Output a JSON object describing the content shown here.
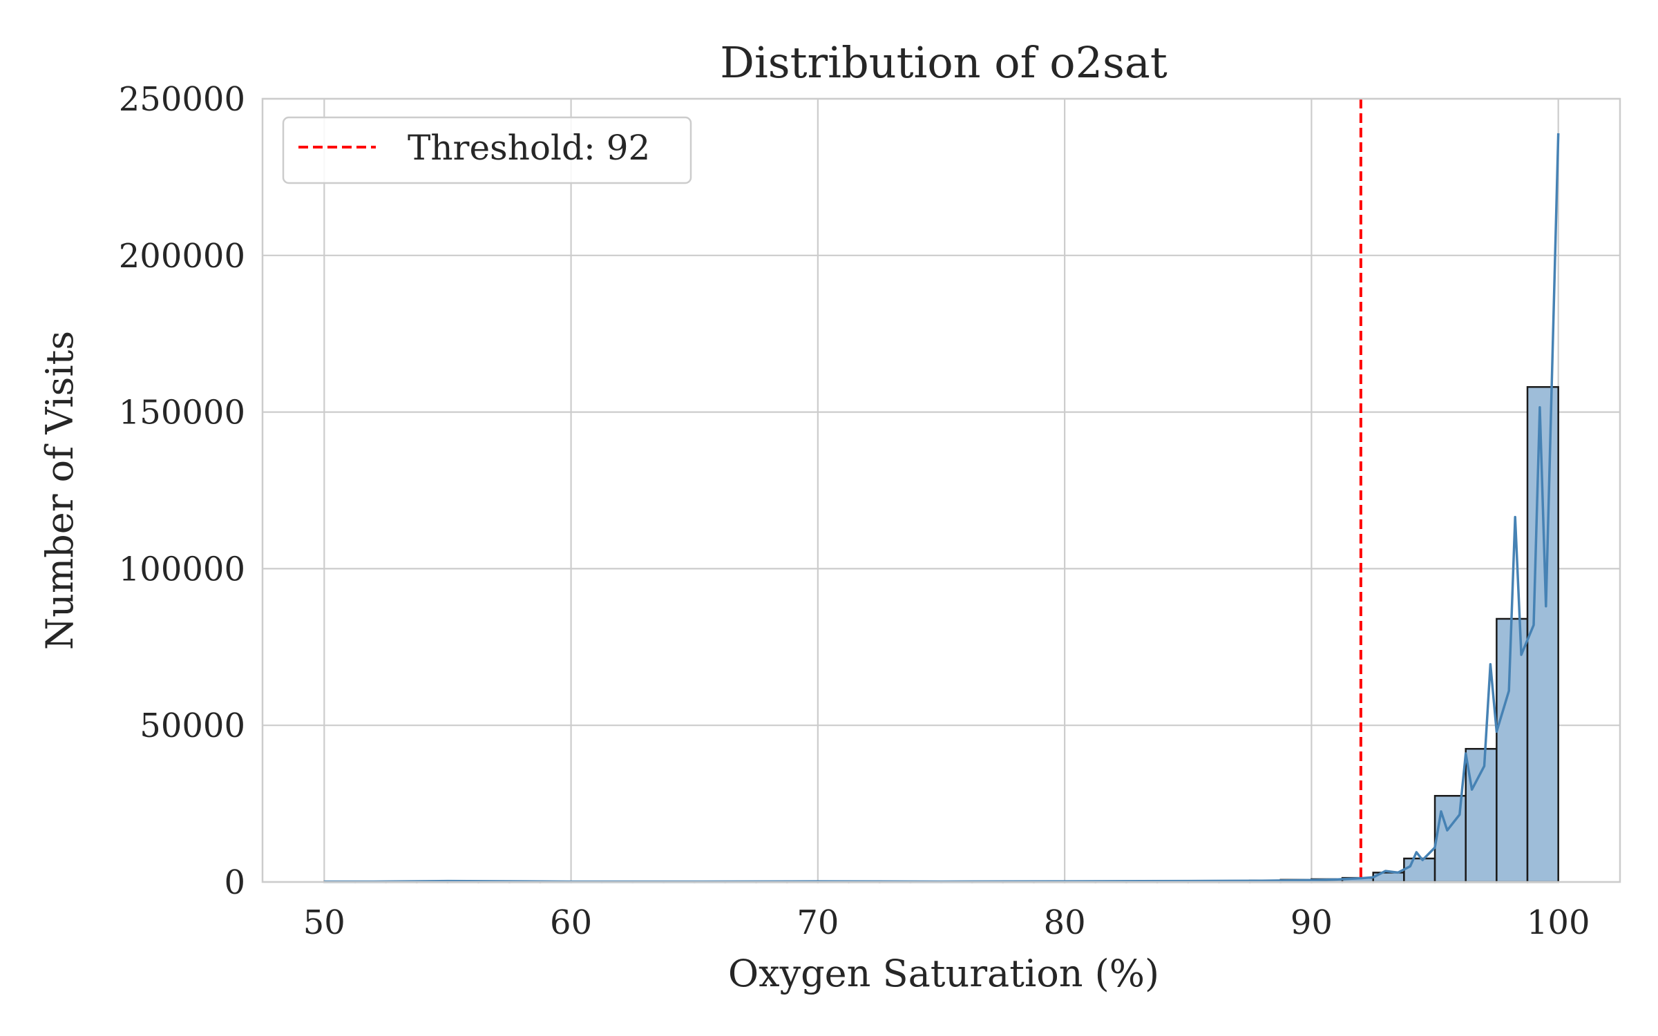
{
  "chart_data": {
    "type": "bar",
    "title": "Distribution of o2sat",
    "xlabel": "Oxygen Saturation (%)",
    "ylabel": "Number of Visits",
    "xlim": [
      47.5,
      102.5
    ],
    "ylim": [
      0,
      250000
    ],
    "x_ticks": [
      50,
      60,
      70,
      80,
      90,
      100
    ],
    "y_ticks": [
      0,
      50000,
      100000,
      150000,
      200000,
      250000
    ],
    "grid": true,
    "legend_position": "top-left",
    "threshold": {
      "label": "Threshold: 92",
      "value": 92,
      "color": "#ff0000",
      "style": "dashed"
    },
    "histogram": {
      "name": "",
      "bin_edges": [
        50,
        51.25,
        52.5,
        53.75,
        55,
        56.25,
        57.5,
        58.75,
        60,
        61.25,
        62.5,
        63.75,
        65,
        66.25,
        67.5,
        68.75,
        70,
        71.25,
        72.5,
        73.75,
        75,
        76.25,
        77.5,
        78.75,
        80,
        81.25,
        82.5,
        83.75,
        85,
        86.25,
        87.5,
        88.75,
        90,
        91.25,
        92.5,
        93.75,
        95,
        96.25,
        97.5,
        98.75,
        100
      ],
      "counts": [
        50,
        50,
        50,
        50,
        250,
        50,
        50,
        50,
        100,
        50,
        50,
        50,
        100,
        50,
        50,
        50,
        150,
        50,
        50,
        50,
        150,
        50,
        50,
        100,
        250,
        150,
        200,
        250,
        350,
        350,
        500,
        700,
        900,
        1300,
        3000,
        7500,
        27500,
        42500,
        84000,
        158000
      ],
      "fill_color": "#9ebdd9",
      "edge_color": "#1a1a1a"
    },
    "kde_line": {
      "color": "#4682b4",
      "x": [
        50,
        52,
        55,
        60,
        65,
        70,
        75,
        80,
        85,
        88,
        90,
        91,
        92,
        92.5,
        93,
        93.5,
        94,
        94.25,
        94.5,
        95,
        95.25,
        95.5,
        96,
        96.25,
        96.5,
        97,
        97.25,
        97.5,
        98,
        98.25,
        98.5,
        99,
        99.25,
        99.5,
        100
      ],
      "y": [
        100,
        100,
        300,
        100,
        100,
        200,
        100,
        200,
        300,
        400,
        600,
        800,
        1200,
        1500,
        3500,
        3000,
        5000,
        9500,
        7000,
        11000,
        22500,
        16500,
        21500,
        41000,
        29500,
        37000,
        69500,
        48000,
        61000,
        116500,
        72500,
        82000,
        151500,
        88000,
        239000
      ]
    }
  }
}
